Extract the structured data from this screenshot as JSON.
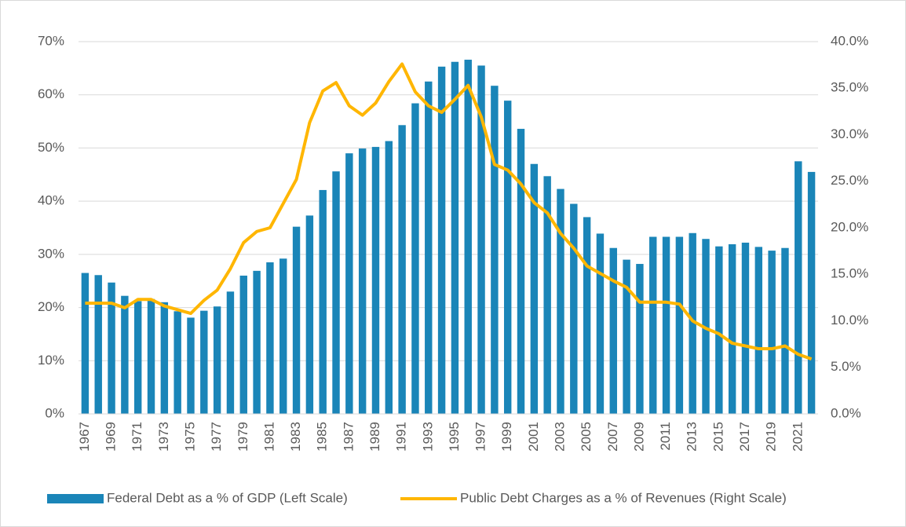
{
  "chart_data": {
    "type": "bar",
    "categories": [
      "1967",
      null,
      "1969",
      null,
      "1971",
      null,
      "1973",
      null,
      "1975",
      null,
      "1977",
      null,
      "1979",
      null,
      "1981",
      null,
      "1983",
      null,
      "1985",
      null,
      "1987",
      null,
      "1989",
      null,
      "1991",
      null,
      "1993",
      null,
      "1995",
      null,
      "1997",
      null,
      "1999",
      null,
      "2001",
      null,
      "2003",
      null,
      "2005",
      null,
      "2007",
      null,
      "2009",
      null,
      "2011",
      null,
      "2013",
      null,
      "2015",
      null,
      "2017",
      null,
      "2019",
      null,
      "2021",
      null
    ],
    "series": [
      {
        "name": "Federal Debt as a % of GDP (Left Scale)",
        "color": "#1a85b8",
        "values": [
          26.5,
          26.1,
          24.7,
          22.2,
          21.2,
          21.6,
          21.0,
          19.3,
          18.1,
          19.4,
          20.2,
          23.0,
          26.0,
          26.9,
          28.5,
          29.2,
          35.2,
          37.3,
          42.1,
          45.6,
          49.0,
          49.9,
          50.2,
          51.3,
          54.3,
          58.4,
          62.5,
          65.3,
          66.2,
          66.6,
          65.5,
          61.7,
          58.9,
          53.6,
          47.0,
          44.7,
          42.3,
          39.5,
          37.0,
          33.9,
          31.2,
          29.0,
          28.2,
          33.3,
          33.3,
          33.3,
          34.0,
          32.9,
          31.5,
          31.9,
          32.2,
          31.4,
          30.7,
          31.2,
          47.5,
          45.5
        ]
      },
      {
        "name": "Public Debt Charges as a % of Revenues (Right Scale)",
        "color": "#ffb600",
        "type": "line",
        "axis": "y2",
        "values": [
          11.9,
          11.9,
          11.9,
          11.4,
          12.3,
          12.3,
          11.6,
          11.2,
          10.8,
          12.2,
          13.3,
          15.6,
          18.4,
          19.6,
          20.0,
          22.6,
          25.2,
          31.3,
          34.7,
          35.6,
          33.1,
          32.1,
          33.4,
          35.7,
          37.6,
          34.6,
          33.1,
          32.4,
          33.8,
          35.3,
          31.9,
          26.8,
          26.2,
          24.7,
          22.7,
          21.6,
          19.4,
          17.8,
          15.9,
          15.1,
          14.3,
          13.6,
          12.0,
          12.0,
          12.0,
          11.8,
          10.0,
          9.2,
          8.6,
          7.6,
          7.3,
          7.0,
          7.0,
          7.3,
          6.4,
          5.9
        ]
      }
    ],
    "ylim": [
      0,
      70
    ],
    "yticks": [
      {
        "value": 0,
        "label": "0%"
      },
      {
        "value": 10,
        "label": "10%"
      },
      {
        "value": 20,
        "label": "20%"
      },
      {
        "value": 30,
        "label": "30%"
      },
      {
        "value": 40,
        "label": "40%"
      },
      {
        "value": 50,
        "label": "50%"
      },
      {
        "value": 60,
        "label": "60%"
      },
      {
        "value": 70,
        "label": "70%"
      }
    ],
    "y2lim": [
      0,
      40
    ],
    "y2ticks": [
      {
        "value": 0,
        "label": "0.0%"
      },
      {
        "value": 5,
        "label": "5.0%"
      },
      {
        "value": 10,
        "label": "10.0%"
      },
      {
        "value": 15,
        "label": "15.0%"
      },
      {
        "value": 20,
        "label": "20.0%"
      },
      {
        "value": 25,
        "label": "25.0%"
      },
      {
        "value": 30,
        "label": "30.0%"
      },
      {
        "value": 35,
        "label": "35.0%"
      },
      {
        "value": 40,
        "label": "40.0%"
      }
    ],
    "grid": true,
    "legend": "bottom"
  }
}
